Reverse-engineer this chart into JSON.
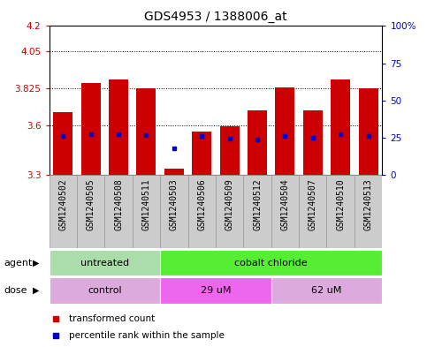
{
  "title": "GDS4953 / 1388006_at",
  "samples": [
    "GSM1240502",
    "GSM1240505",
    "GSM1240508",
    "GSM1240511",
    "GSM1240503",
    "GSM1240506",
    "GSM1240509",
    "GSM1240512",
    "GSM1240504",
    "GSM1240507",
    "GSM1240510",
    "GSM1240513"
  ],
  "bar_values": [
    3.68,
    3.855,
    3.875,
    3.825,
    3.34,
    3.565,
    3.595,
    3.69,
    3.83,
    3.69,
    3.875,
    3.825
  ],
  "percentile_values": [
    3.535,
    3.545,
    3.545,
    3.54,
    3.46,
    3.535,
    3.52,
    3.515,
    3.535,
    3.525,
    3.545,
    3.535
  ],
  "bar_bottom": 3.3,
  "ylim_left": [
    3.3,
    4.2
  ],
  "ylim_right": [
    0,
    100
  ],
  "yticks_left": [
    3.3,
    3.6,
    3.825,
    4.05,
    4.2
  ],
  "yticks_right": [
    0,
    25,
    50,
    75,
    100
  ],
  "ytick_labels_left": [
    "3.3",
    "3.6",
    "3.825",
    "4.05",
    "4.2"
  ],
  "ytick_labels_right": [
    "0",
    "25",
    "50",
    "75",
    "100%"
  ],
  "hlines": [
    4.05,
    3.825,
    3.6
  ],
  "bar_color": "#cc0000",
  "percentile_color": "#0000cc",
  "bar_width": 0.7,
  "agent_groups": [
    {
      "label": "untreated",
      "start": 0,
      "end": 4,
      "color": "#aaddaa"
    },
    {
      "label": "cobalt chloride",
      "start": 4,
      "end": 12,
      "color": "#55ee33"
    }
  ],
  "dose_groups": [
    {
      "label": "control",
      "start": 0,
      "end": 4,
      "color": "#ddaadd"
    },
    {
      "label": "29 uM",
      "start": 4,
      "end": 8,
      "color": "#ee66ee"
    },
    {
      "label": "62 uM",
      "start": 8,
      "end": 12,
      "color": "#ddaadd"
    }
  ],
  "legend_bar_label": "transformed count",
  "legend_percentile_label": "percentile rank within the sample",
  "agent_label": "agent",
  "dose_label": "dose",
  "title_fontsize": 10,
  "tick_fontsize": 7.5,
  "label_fontsize": 8,
  "xtick_fontsize": 7,
  "background_color": "#ffffff",
  "plot_bg_color": "#ffffff",
  "tick_color_left": "#cc0000",
  "tick_color_right": "#0000cc",
  "gray_bg": "#cccccc",
  "gray_border": "#999999"
}
